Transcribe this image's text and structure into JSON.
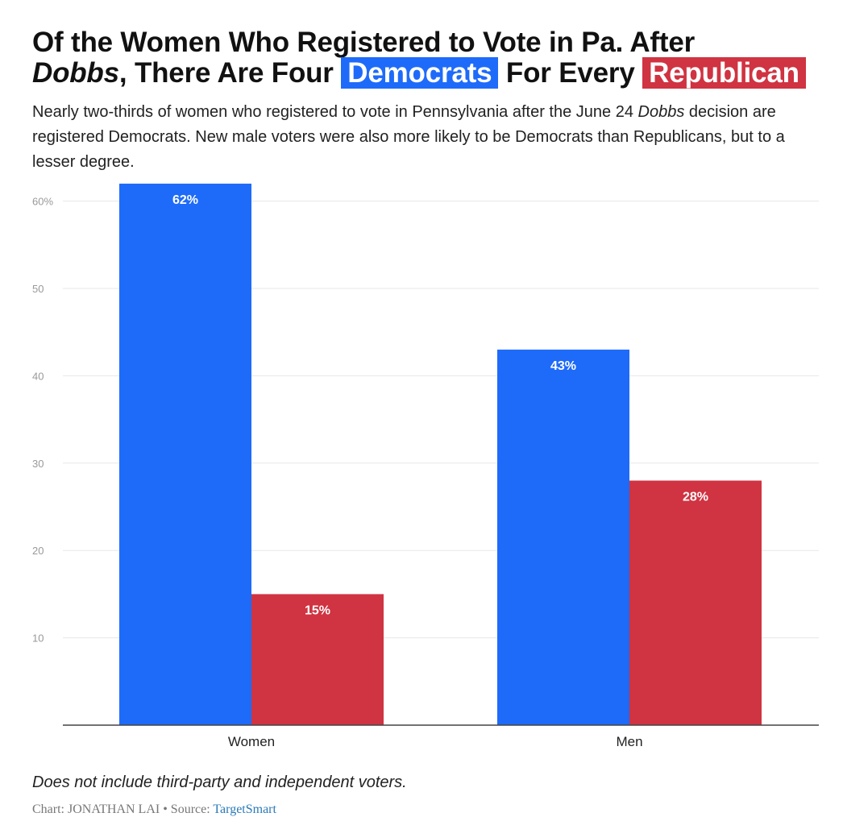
{
  "header": {
    "title_line1": "Of the Women Who Registered to Vote in Pa. After",
    "title_dobbs": "Dobbs",
    "title_mid": ", There Are Four",
    "title_dem": "Democrats",
    "title_for_every": "For Every",
    "title_rep": "Republican"
  },
  "subtitle": {
    "part1": "Nearly two-thirds of women who registered to vote in Pennsylvania after the June 24",
    "dobbs": "Dobbs",
    "part2": "decision are registered Democrats. New male voters were also more likely to be Democrats than Republicans, but to a lesser degree."
  },
  "colors": {
    "democrat": "#1e6bfa",
    "republican": "#d03341"
  },
  "chart_data": {
    "type": "bar",
    "categories": [
      "Women",
      "Men"
    ],
    "series": [
      {
        "name": "Democrats",
        "color": "#1e6bfa",
        "values": [
          62,
          43
        ],
        "labels": [
          "62%",
          "43%"
        ]
      },
      {
        "name": "Republicans",
        "color": "#d03341",
        "values": [
          15,
          28
        ],
        "labels": [
          "15%",
          "28%"
        ]
      }
    ],
    "yticks": [
      {
        "value": 10,
        "label": "10"
      },
      {
        "value": 20,
        "label": "20"
      },
      {
        "value": 30,
        "label": "30"
      },
      {
        "value": 40,
        "label": "40"
      },
      {
        "value": 50,
        "label": "50"
      },
      {
        "value": 60,
        "label": "60%"
      }
    ],
    "ylim": [
      0,
      62
    ],
    "grid": true,
    "title": "",
    "xlabel": "",
    "ylabel": ""
  },
  "footer": {
    "note": "Does not include third-party and independent voters.",
    "credit_prefix": "Chart: JONATHAN LAI • Source: ",
    "source_link": "TargetSmart"
  }
}
